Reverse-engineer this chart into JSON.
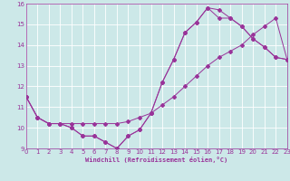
{
  "xlabel": "Windchill (Refroidissement éolien,°C)",
  "bg_color": "#cce8e8",
  "grid_color": "#ffffff",
  "line_color": "#993399",
  "spine_color": "#993399",
  "xmin": 0,
  "xmax": 23,
  "ymin": 9,
  "ymax": 16,
  "line1_x": [
    0,
    1,
    2,
    3,
    4,
    5,
    6,
    7,
    8,
    9,
    10,
    11,
    12,
    13,
    14,
    15,
    16,
    17,
    18,
    19,
    20,
    21,
    22,
    23
  ],
  "line1_y": [
    11.5,
    10.5,
    10.2,
    10.2,
    10.0,
    9.6,
    9.6,
    9.3,
    9.0,
    9.6,
    9.9,
    10.7,
    12.2,
    13.3,
    14.6,
    15.1,
    15.8,
    15.7,
    15.3,
    14.9,
    14.3,
    13.9,
    13.4,
    13.3
  ],
  "line2_x": [
    0,
    1,
    2,
    3,
    4,
    5,
    6,
    7,
    8,
    9,
    10,
    11,
    12,
    13,
    14,
    15,
    16,
    17,
    18,
    19,
    20,
    21,
    22,
    23
  ],
  "line2_y": [
    11.5,
    10.5,
    10.2,
    10.2,
    10.2,
    10.2,
    10.2,
    10.2,
    10.2,
    10.3,
    10.5,
    10.7,
    11.1,
    11.5,
    12.0,
    12.5,
    13.0,
    13.4,
    13.7,
    14.0,
    14.5,
    14.9,
    15.3,
    13.3
  ],
  "line3_x": [
    0,
    1,
    2,
    3,
    4,
    5,
    6,
    7,
    8,
    9,
    10,
    11,
    12,
    13,
    14,
    15,
    16,
    17,
    18,
    19,
    20,
    21,
    22,
    23
  ],
  "line3_y": [
    11.5,
    10.5,
    10.2,
    10.2,
    10.0,
    9.6,
    9.6,
    9.3,
    9.0,
    9.6,
    9.9,
    10.7,
    12.2,
    13.3,
    14.6,
    15.1,
    15.8,
    15.3,
    15.3,
    14.9,
    14.3,
    13.9,
    13.4,
    13.3
  ],
  "yticks": [
    9,
    10,
    11,
    12,
    13,
    14,
    15,
    16
  ],
  "xticks": [
    0,
    1,
    2,
    3,
    4,
    5,
    6,
    7,
    8,
    9,
    10,
    11,
    12,
    13,
    14,
    15,
    16,
    17,
    18,
    19,
    20,
    21,
    22,
    23
  ],
  "tick_fontsize": 5,
  "xlabel_fontsize": 5,
  "marker_size": 2,
  "line_width": 0.7
}
